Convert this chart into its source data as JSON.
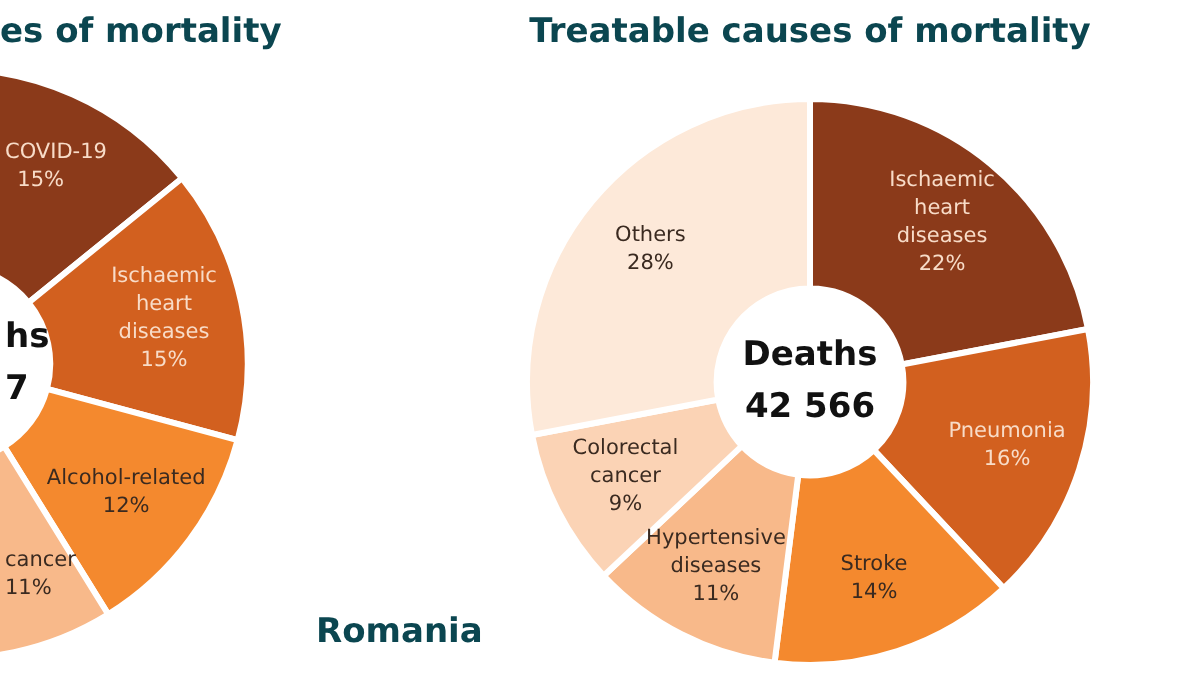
{
  "chart_data": [
    {
      "type": "donut",
      "title": "es of mortality",
      "categories": [
        "COVID-19",
        "Ischaemic heart diseases",
        "Alcohol-related",
        "cancer"
      ],
      "values": [
        15,
        15,
        12,
        11
      ],
      "colors": [
        "#8b3a1a",
        "#d2601f",
        "#f4892e",
        "#f8b98a"
      ],
      "value_labels": [
        "15%",
        "15%",
        "12%",
        "11%"
      ],
      "annotations": [
        "hs",
        "7"
      ]
    },
    {
      "type": "donut",
      "title": "Treatable causes of mortality",
      "categories": [
        "Ischaemic heart diseases",
        "Pneumonia",
        "Stroke",
        "Hypertensive diseases",
        "Colorectal cancer",
        "Others"
      ],
      "values": [
        22,
        16,
        14,
        11,
        9,
        28
      ],
      "colors": [
        "#8b3a1a",
        "#d2601f",
        "#f4892e",
        "#f8b98a",
        "#fbd3b5",
        "#fde9d9"
      ],
      "value_labels": [
        "22%",
        "16%",
        "14%",
        "11%",
        "9%",
        "28%"
      ],
      "annotations": [
        "Deaths",
        "42 566",
        "Romania"
      ]
    }
  ]
}
